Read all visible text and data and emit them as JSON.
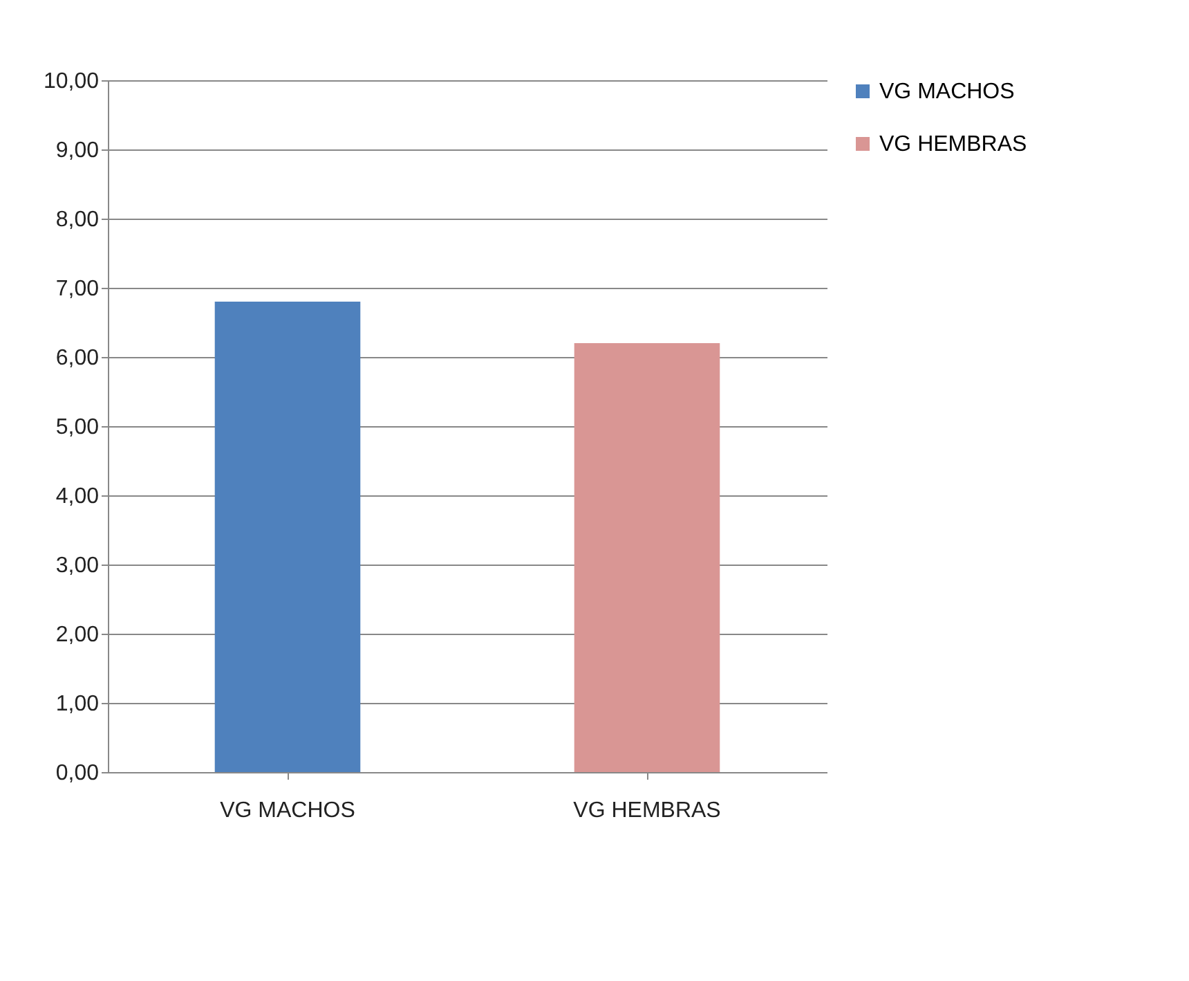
{
  "chart_data": {
    "type": "bar",
    "categories": [
      "VG MACHOS",
      "VG HEMBRAS"
    ],
    "series": [
      {
        "name": "VG MACHOS",
        "color": "#4f81bd",
        "values": [
          6.8,
          null
        ]
      },
      {
        "name": "VG HEMBRAS",
        "color": "#d99694",
        "values": [
          null,
          6.2
        ]
      }
    ],
    "ylim": [
      0,
      10
    ],
    "yticks": [
      {
        "value": 0,
        "label": "0,00"
      },
      {
        "value": 1,
        "label": "1,00"
      },
      {
        "value": 2,
        "label": "2,00"
      },
      {
        "value": 3,
        "label": "3,00"
      },
      {
        "value": 4,
        "label": "4,00"
      },
      {
        "value": 5,
        "label": "5,00"
      },
      {
        "value": 6,
        "label": "6,00"
      },
      {
        "value": 7,
        "label": "7,00"
      },
      {
        "value": 8,
        "label": "8,00"
      },
      {
        "value": 9,
        "label": "9,00"
      },
      {
        "value": 10,
        "label": "10,00"
      }
    ],
    "grid": true,
    "legend": "right"
  }
}
